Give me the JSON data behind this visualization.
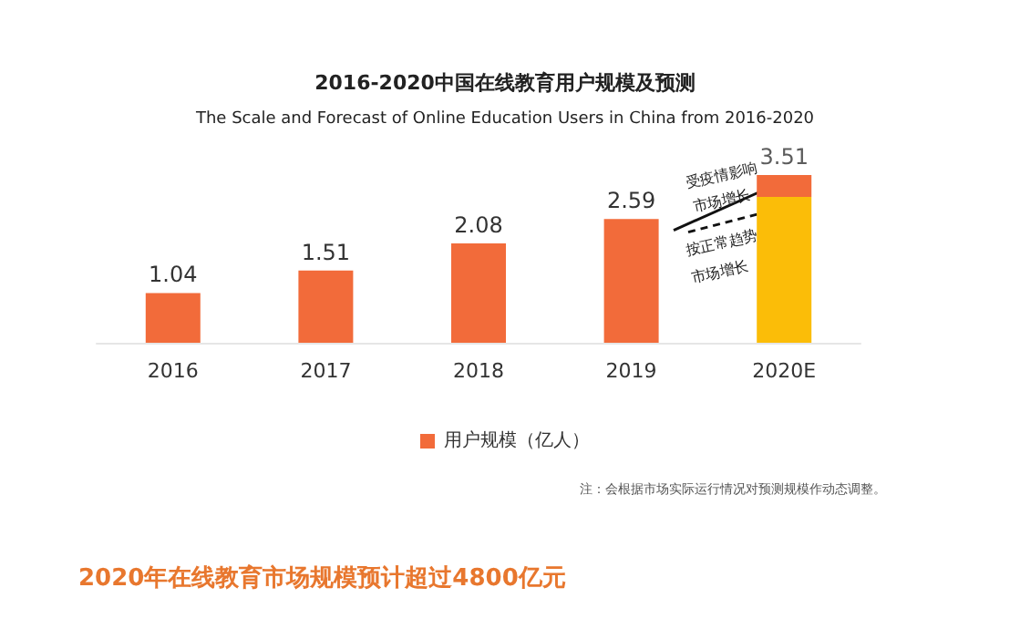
{
  "chart_data": {
    "type": "bar",
    "title": "2016-2020中国在线教育用户规模及预测",
    "subtitle": "The Scale and Forecast of Online Education Users in China from 2016-2020",
    "categories": [
      "2016",
      "2017",
      "2018",
      "2019",
      "2020E"
    ],
    "stacked": true,
    "series": [
      {
        "color": "#fbbd08",
        "values": [
          null,
          null,
          null,
          null,
          3.05
        ]
      },
      {
        "name": "用户规模（亿人）",
        "color": "#f26b3a",
        "values": [
          1.04,
          1.51,
          2.08,
          2.59,
          0.46
        ],
        "value_labels": [
          "1.04",
          "1.51",
          "2.08",
          "2.59",
          null
        ]
      }
    ],
    "totals": [
      null,
      null,
      null,
      null,
      "3.51"
    ],
    "legend": "bottom",
    "grid": false,
    "annotations": [
      "受疫情影响",
      "市场增长",
      "按正常趋势",
      "市场增长",
      "注：会根据市场实际运行情况对预测规模作动态调整。",
      "2020年在线教育市场规模预计超过4800亿元"
    ]
  }
}
